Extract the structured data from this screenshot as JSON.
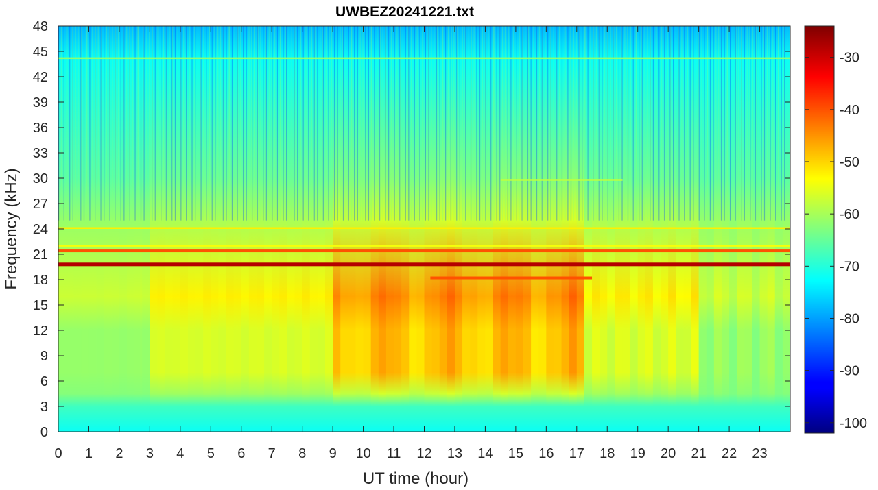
{
  "chart_data": {
    "type": "heatmap",
    "title": "UWBEZ20241221.txt",
    "xlabel": "UT time (hour)",
    "ylabel": "Frequency (kHz)",
    "xlim": [
      0,
      24
    ],
    "ylim": [
      0,
      48
    ],
    "x_ticks": [
      0,
      1,
      2,
      3,
      4,
      5,
      6,
      7,
      8,
      9,
      10,
      11,
      12,
      13,
      14,
      15,
      16,
      17,
      18,
      19,
      20,
      21,
      22,
      23
    ],
    "y_ticks": [
      0,
      3,
      6,
      9,
      12,
      15,
      18,
      21,
      24,
      27,
      30,
      33,
      36,
      39,
      42,
      45,
      48
    ],
    "colorbar": {
      "colormap": "jet",
      "clim": [
        -102,
        -24
      ],
      "ticks": [
        -30,
        -40,
        -50,
        -60,
        -70,
        -80,
        -90,
        -100
      ]
    },
    "background_level_dB": -70,
    "bands": [
      {
        "freq_kHz": 19.8,
        "level_dB": -28,
        "start_hour": 0,
        "end_hour": 24
      },
      {
        "freq_kHz": 21.4,
        "level_dB": -40,
        "start_hour": 0,
        "end_hour": 24
      },
      {
        "freq_kHz": 18.2,
        "level_dB": -40,
        "start_hour": 12.2,
        "end_hour": 17.5
      },
      {
        "freq_kHz": 44.2,
        "level_dB": -62,
        "start_hour": 0,
        "end_hour": 24
      },
      {
        "freq_kHz": 24.1,
        "level_dB": -52,
        "start_hour": 0,
        "end_hour": 24
      },
      {
        "freq_kHz": 22.0,
        "level_dB": -54,
        "start_hour": 0,
        "end_hour": 24
      },
      {
        "freq_kHz": 29.8,
        "level_dB": -58,
        "start_hour": 14.5,
        "end_hour": 18.5
      }
    ],
    "broadband_activity": {
      "freq_range_kHz": [
        4,
        16
      ],
      "peak_hours": [
        9,
        17
      ],
      "peak_level_dB": -45
    }
  }
}
